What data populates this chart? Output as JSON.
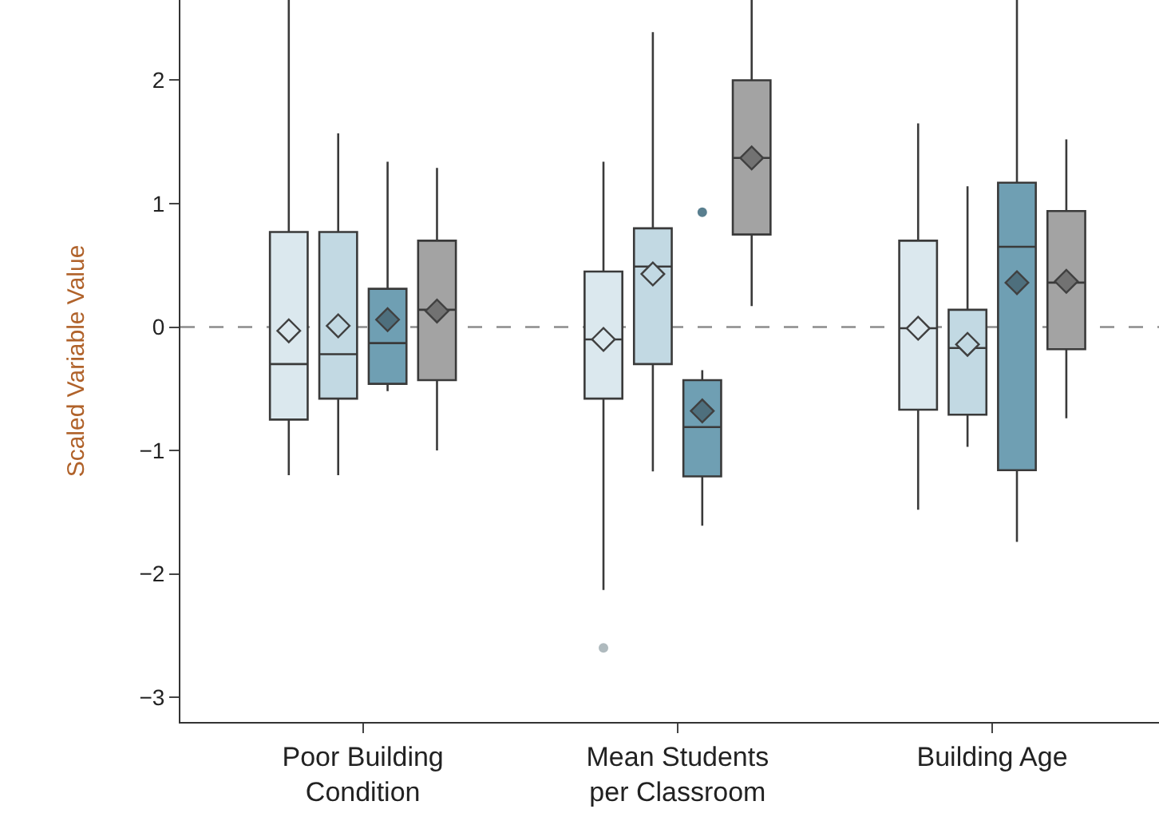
{
  "chart_data": {
    "type": "box",
    "ylabel": "Scaled Variable Value",
    "categories": [
      "Poor Building\nCondition",
      "Mean Students\nper Classroom",
      "Building Age"
    ],
    "ylim": [
      -3.2,
      2.65
    ],
    "yticks": [
      {
        "value": -3,
        "label": "−3"
      },
      {
        "value": -2,
        "label": "−2"
      },
      {
        "value": -1,
        "label": "−1"
      },
      0,
      1,
      2
    ],
    "grid": false,
    "marker": "diamond",
    "ref_lines": [
      {
        "axis": "y",
        "value": 0,
        "color": "#8c8c8c",
        "line_style": "dashed"
      }
    ],
    "series": [
      {
        "color": "#dbe8ee",
        "boxes": [
          {
            "low": -1.2,
            "q1": -0.75,
            "median": -0.3,
            "q3": 0.77,
            "high": 2.65,
            "mean": -0.03
          },
          {
            "low": -2.13,
            "q1": -0.58,
            "median": -0.1,
            "q3": 0.45,
            "high": 1.34,
            "mean": -0.1,
            "outliers": [
              -2.6
            ]
          },
          {
            "low": -1.48,
            "q1": -0.67,
            "median": -0.01,
            "q3": 0.7,
            "high": 1.65,
            "mean": -0.01
          }
        ]
      },
      {
        "color": "#c2d9e3",
        "boxes": [
          {
            "low": -1.2,
            "q1": -0.58,
            "median": -0.22,
            "q3": 0.77,
            "high": 1.57,
            "mean": 0.01
          },
          {
            "low": -1.17,
            "q1": -0.3,
            "median": 0.49,
            "q3": 0.8,
            "high": 2.39,
            "mean": 0.43
          },
          {
            "low": -0.97,
            "q1": -0.71,
            "median": -0.17,
            "q3": 0.14,
            "high": 1.14,
            "mean": -0.14
          }
        ]
      },
      {
        "color": "#6f9fb3",
        "boxes": [
          {
            "low": -0.52,
            "q1": -0.46,
            "median": -0.13,
            "q3": 0.31,
            "high": 1.34,
            "mean": 0.06
          },
          {
            "low": -1.61,
            "q1": -1.21,
            "median": -0.81,
            "q3": -0.43,
            "high": -0.35,
            "mean": -0.68,
            "outliers": [
              0.93
            ]
          },
          {
            "low": -1.74,
            "q1": -1.16,
            "median": 0.65,
            "q3": 1.17,
            "high": 2.65,
            "mean": 0.36
          }
        ]
      },
      {
        "color": "#a3a3a3",
        "boxes": [
          {
            "low": -1.0,
            "q1": -0.43,
            "median": 0.14,
            "q3": 0.7,
            "high": 1.29,
            "mean": 0.13
          },
          {
            "low": 0.17,
            "q1": 0.75,
            "median": 1.37,
            "q3": 2.0,
            "high": 2.65,
            "mean": 1.37
          },
          {
            "low": -0.74,
            "q1": -0.18,
            "median": 0.36,
            "q3": 0.94,
            "high": 1.52,
            "mean": 0.37
          }
        ]
      }
    ]
  }
}
